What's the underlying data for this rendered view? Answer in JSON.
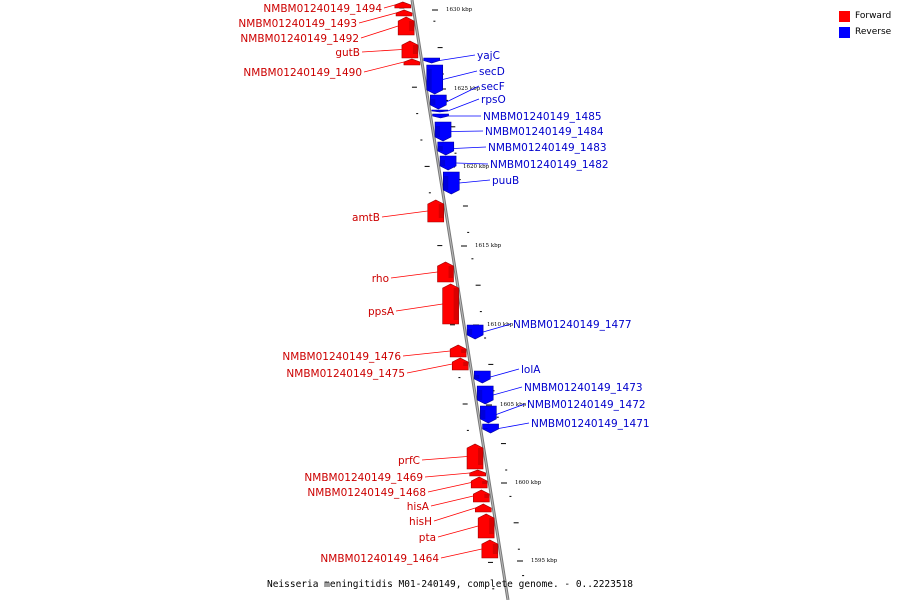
{
  "legend": {
    "forward": {
      "label": "Forward",
      "color": "#ff0000"
    },
    "reverse": {
      "label": "Reverse",
      "color": "#0000ff"
    }
  },
  "caption": "Neisseria meningitidis M01-240149, complete genome. - 0..2223518",
  "ruler_labels": [
    "1630 kbp",
    "1625 kbp",
    "1620 kbp",
    "1615 kbp",
    "1610 kbp",
    "1605 kbp",
    "1600 kbp",
    "1595 kbp"
  ],
  "genes": [
    {
      "name": "NMBM01240149_1494",
      "strand": "forward"
    },
    {
      "name": "NMBM01240149_1493",
      "strand": "forward"
    },
    {
      "name": "NMBM01240149_1492",
      "strand": "forward"
    },
    {
      "name": "gutB",
      "strand": "forward"
    },
    {
      "name": "NMBM01240149_1490",
      "strand": "forward"
    },
    {
      "name": "yajC",
      "strand": "reverse"
    },
    {
      "name": "secD",
      "strand": "reverse"
    },
    {
      "name": "secF",
      "strand": "reverse"
    },
    {
      "name": "rpsO",
      "strand": "reverse"
    },
    {
      "name": "NMBM01240149_1485",
      "strand": "reverse"
    },
    {
      "name": "NMBM01240149_1484",
      "strand": "reverse"
    },
    {
      "name": "NMBM01240149_1483",
      "strand": "reverse"
    },
    {
      "name": "NMBM01240149_1482",
      "strand": "reverse"
    },
    {
      "name": "puuB",
      "strand": "reverse"
    },
    {
      "name": "amtB",
      "strand": "forward"
    },
    {
      "name": "rho",
      "strand": "forward"
    },
    {
      "name": "ppsA",
      "strand": "forward"
    },
    {
      "name": "NMBM01240149_1477",
      "strand": "reverse"
    },
    {
      "name": "NMBM01240149_1476",
      "strand": "forward"
    },
    {
      "name": "NMBM01240149_1475",
      "strand": "forward"
    },
    {
      "name": "lolA",
      "strand": "reverse"
    },
    {
      "name": "NMBM01240149_1473",
      "strand": "reverse"
    },
    {
      "name": "NMBM01240149_1472",
      "strand": "reverse"
    },
    {
      "name": "NMBM01240149_1471",
      "strand": "reverse"
    },
    {
      "name": "prfC",
      "strand": "forward"
    },
    {
      "name": "NMBM01240149_1469",
      "strand": "forward"
    },
    {
      "name": "NMBM01240149_1468",
      "strand": "forward"
    },
    {
      "name": "hisA",
      "strand": "forward"
    },
    {
      "name": "hisH",
      "strand": "forward"
    },
    {
      "name": "pta",
      "strand": "forward"
    },
    {
      "name": "NMBM01240149_1464",
      "strand": "forward"
    }
  ]
}
